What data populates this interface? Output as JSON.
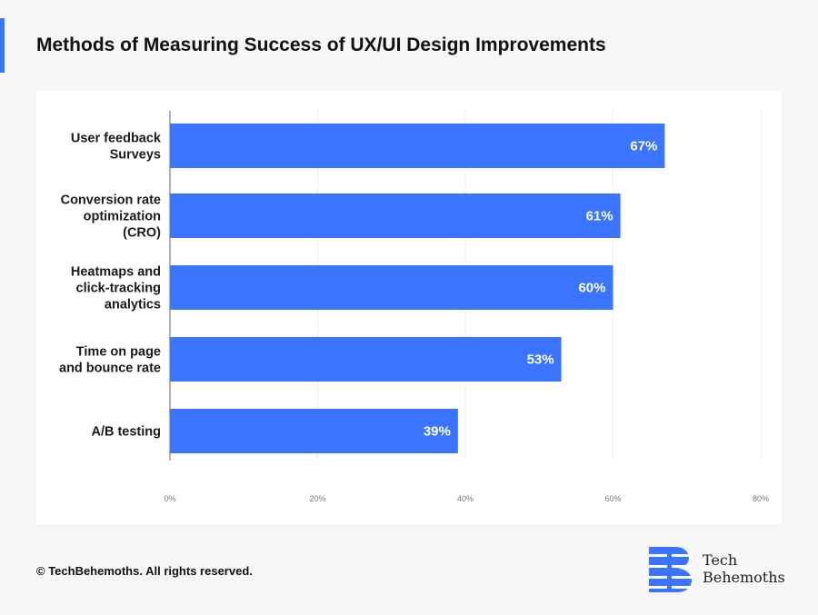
{
  "title": "Methods of Measuring Success of UX/UI Design Improvements",
  "footer": "© TechBehemoths. All rights reserved.",
  "logo": {
    "line1": "Tech",
    "line2": "Behemoths"
  },
  "colors": {
    "bar": "#3b74ff",
    "accent": "#3b74ff",
    "background": "#f6f6f6"
  },
  "chart_data": {
    "type": "bar",
    "orientation": "horizontal",
    "categories": [
      [
        "User feedback",
        "Surveys"
      ],
      [
        "Conversion rate",
        "optimization",
        "(CRO)"
      ],
      [
        "Heatmaps and",
        "click-tracking",
        "analytics"
      ],
      [
        "Time on page",
        "and bounce rate"
      ],
      [
        "A/B testing"
      ]
    ],
    "values": [
      67,
      61,
      60,
      53,
      39
    ],
    "data_labels": [
      "67%",
      "61%",
      "60%",
      "53%",
      "39%"
    ],
    "xlim": [
      0,
      80
    ],
    "xticks": [
      0,
      20,
      40,
      60,
      80
    ],
    "xtick_labels": [
      "0%",
      "20%",
      "40%",
      "60%",
      "80%"
    ],
    "grid": true,
    "title": "Methods of Measuring Success of UX/UI Design Improvements"
  }
}
